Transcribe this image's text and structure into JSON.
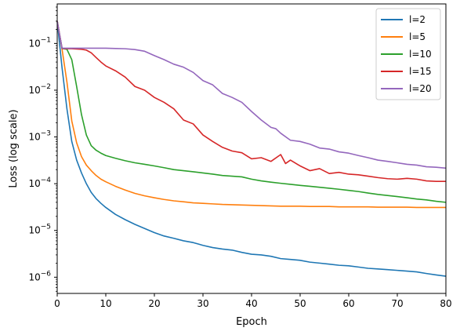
{
  "chart_data": {
    "type": "line",
    "xlabel": "Epoch",
    "ylabel": "Loss (log scale)",
    "x_range": [
      0,
      80
    ],
    "y_range": [
      4.5e-07,
      0.7
    ],
    "y_scale": "log",
    "x_ticks": [
      0,
      10,
      20,
      30,
      40,
      50,
      60,
      70,
      80
    ],
    "y_ticks": [
      {
        "value": 1e-06,
        "base": "10",
        "exp": "−6"
      },
      {
        "value": 1e-05,
        "base": "10",
        "exp": "−5"
      },
      {
        "value": 0.0001,
        "base": "10",
        "exp": "−4"
      },
      {
        "value": 0.001,
        "base": "10",
        "exp": "−3"
      },
      {
        "value": 0.01,
        "base": "10",
        "exp": "−2"
      },
      {
        "value": 0.1,
        "base": "10",
        "exp": "−1"
      }
    ],
    "grid": false,
    "legend_position": "top-right",
    "series": [
      {
        "name": "l=2",
        "color": "#1f77b4",
        "points": [
          [
            0,
            0.3
          ],
          [
            1,
            0.03
          ],
          [
            2,
            0.004
          ],
          [
            3,
            0.0008
          ],
          [
            4,
            0.00032
          ],
          [
            5,
            0.00017
          ],
          [
            6,
            0.0001
          ],
          [
            7,
            6.5e-05
          ],
          [
            8,
            4.8e-05
          ],
          [
            9,
            3.8e-05
          ],
          [
            10,
            3.1e-05
          ],
          [
            12,
            2.2e-05
          ],
          [
            14,
            1.7e-05
          ],
          [
            16,
            1.35e-05
          ],
          [
            18,
            1.1e-05
          ],
          [
            20,
            9e-06
          ],
          [
            22,
            7.6e-06
          ],
          [
            24,
            6.8e-06
          ],
          [
            26,
            6e-06
          ],
          [
            28,
            5.5e-06
          ],
          [
            30,
            4.8e-06
          ],
          [
            32,
            4.3e-06
          ],
          [
            34,
            4e-06
          ],
          [
            36,
            3.8e-06
          ],
          [
            38,
            3.4e-06
          ],
          [
            40,
            3.1e-06
          ],
          [
            42,
            3e-06
          ],
          [
            44,
            2.8e-06
          ],
          [
            46,
            2.5e-06
          ],
          [
            48,
            2.4e-06
          ],
          [
            50,
            2.3e-06
          ],
          [
            52,
            2.1e-06
          ],
          [
            54,
            2e-06
          ],
          [
            56,
            1.9e-06
          ],
          [
            58,
            1.8e-06
          ],
          [
            60,
            1.75e-06
          ],
          [
            62,
            1.65e-06
          ],
          [
            64,
            1.55e-06
          ],
          [
            66,
            1.5e-06
          ],
          [
            68,
            1.45e-06
          ],
          [
            70,
            1.4e-06
          ],
          [
            72,
            1.35e-06
          ],
          [
            74,
            1.3e-06
          ],
          [
            76,
            1.2e-06
          ],
          [
            78,
            1.12e-06
          ],
          [
            80,
            1.05e-06
          ]
        ]
      },
      {
        "name": "l=5",
        "color": "#ff7f0e",
        "points": [
          [
            0,
            0.3
          ],
          [
            1,
            0.075
          ],
          [
            2,
            0.015
          ],
          [
            3,
            0.0022
          ],
          [
            4,
            0.00075
          ],
          [
            5,
            0.00038
          ],
          [
            6,
            0.00025
          ],
          [
            7,
            0.00019
          ],
          [
            8,
            0.00015
          ],
          [
            9,
            0.000125
          ],
          [
            10,
            0.00011
          ],
          [
            12,
            8.8e-05
          ],
          [
            14,
            7.3e-05
          ],
          [
            16,
            6.2e-05
          ],
          [
            18,
            5.5e-05
          ],
          [
            20,
            5e-05
          ],
          [
            22,
            4.6e-05
          ],
          [
            24,
            4.3e-05
          ],
          [
            26,
            4.1e-05
          ],
          [
            28,
            3.9e-05
          ],
          [
            30,
            3.8e-05
          ],
          [
            32,
            3.7e-05
          ],
          [
            34,
            3.6e-05
          ],
          [
            36,
            3.55e-05
          ],
          [
            38,
            3.5e-05
          ],
          [
            40,
            3.45e-05
          ],
          [
            42,
            3.4e-05
          ],
          [
            44,
            3.35e-05
          ],
          [
            46,
            3.3e-05
          ],
          [
            48,
            3.3e-05
          ],
          [
            50,
            3.3e-05
          ],
          [
            52,
            3.25e-05
          ],
          [
            54,
            3.25e-05
          ],
          [
            56,
            3.25e-05
          ],
          [
            58,
            3.2e-05
          ],
          [
            60,
            3.2e-05
          ],
          [
            62,
            3.2e-05
          ],
          [
            64,
            3.2e-05
          ],
          [
            66,
            3.15e-05
          ],
          [
            68,
            3.15e-05
          ],
          [
            70,
            3.15e-05
          ],
          [
            72,
            3.15e-05
          ],
          [
            74,
            3.1e-05
          ],
          [
            76,
            3.1e-05
          ],
          [
            78,
            3.1e-05
          ],
          [
            80,
            3.1e-05
          ]
        ]
      },
      {
        "name": "l=10",
        "color": "#2ca02c",
        "points": [
          [
            0,
            0.3
          ],
          [
            1,
            0.078
          ],
          [
            2,
            0.075
          ],
          [
            3,
            0.045
          ],
          [
            4,
            0.012
          ],
          [
            5,
            0.003
          ],
          [
            6,
            0.0011
          ],
          [
            7,
            0.00065
          ],
          [
            8,
            0.00052
          ],
          [
            9,
            0.00045
          ],
          [
            10,
            0.0004
          ],
          [
            12,
            0.00035
          ],
          [
            14,
            0.00031
          ],
          [
            16,
            0.00028
          ],
          [
            18,
            0.00026
          ],
          [
            20,
            0.00024
          ],
          [
            22,
            0.00022
          ],
          [
            24,
            0.0002
          ],
          [
            26,
            0.00019
          ],
          [
            28,
            0.00018
          ],
          [
            30,
            0.00017
          ],
          [
            32,
            0.00016
          ],
          [
            34,
            0.00015
          ],
          [
            36,
            0.000145
          ],
          [
            38,
            0.00014
          ],
          [
            40,
            0.000125
          ],
          [
            42,
            0.000115
          ],
          [
            44,
            0.000108
          ],
          [
            46,
            0.000102
          ],
          [
            48,
            9.7e-05
          ],
          [
            50,
            9.2e-05
          ],
          [
            52,
            8.8e-05
          ],
          [
            54,
            8.4e-05
          ],
          [
            56,
            8e-05
          ],
          [
            58,
            7.6e-05
          ],
          [
            60,
            7.2e-05
          ],
          [
            62,
            6.8e-05
          ],
          [
            64,
            6.3e-05
          ],
          [
            66,
            5.9e-05
          ],
          [
            68,
            5.6e-05
          ],
          [
            70,
            5.3e-05
          ],
          [
            72,
            5e-05
          ],
          [
            74,
            4.7e-05
          ],
          [
            76,
            4.5e-05
          ],
          [
            78,
            4.2e-05
          ],
          [
            80,
            4e-05
          ]
        ]
      },
      {
        "name": "l=15",
        "color": "#d62728",
        "points": [
          [
            0,
            0.3
          ],
          [
            1,
            0.078
          ],
          [
            2,
            0.077
          ],
          [
            3,
            0.077
          ],
          [
            4,
            0.076
          ],
          [
            5,
            0.075
          ],
          [
            6,
            0.072
          ],
          [
            7,
            0.063
          ],
          [
            8,
            0.05
          ],
          [
            9,
            0.04
          ],
          [
            10,
            0.033
          ],
          [
            12,
            0.026
          ],
          [
            14,
            0.019
          ],
          [
            16,
            0.012
          ],
          [
            18,
            0.01
          ],
          [
            20,
            0.007
          ],
          [
            22,
            0.0055
          ],
          [
            24,
            0.004
          ],
          [
            26,
            0.0023
          ],
          [
            28,
            0.0019
          ],
          [
            30,
            0.0011
          ],
          [
            32,
            0.0008
          ],
          [
            34,
            0.0006
          ],
          [
            36,
            0.0005
          ],
          [
            38,
            0.00046
          ],
          [
            40,
            0.00034
          ],
          [
            42,
            0.00036
          ],
          [
            44,
            0.0003
          ],
          [
            46,
            0.00042
          ],
          [
            47,
            0.00027
          ],
          [
            48,
            0.00032
          ],
          [
            50,
            0.00024
          ],
          [
            52,
            0.00019
          ],
          [
            54,
            0.00021
          ],
          [
            56,
            0.000165
          ],
          [
            58,
            0.000175
          ],
          [
            60,
            0.00016
          ],
          [
            62,
            0.000155
          ],
          [
            64,
            0.000145
          ],
          [
            66,
            0.000135
          ],
          [
            68,
            0.000128
          ],
          [
            70,
            0.000125
          ],
          [
            72,
            0.00013
          ],
          [
            74,
            0.000125
          ],
          [
            76,
            0.000115
          ],
          [
            78,
            0.000112
          ],
          [
            80,
            0.000112
          ]
        ]
      },
      {
        "name": "l=20",
        "color": "#9467bd",
        "points": [
          [
            0,
            0.3
          ],
          [
            1,
            0.079
          ],
          [
            2,
            0.079
          ],
          [
            4,
            0.079
          ],
          [
            6,
            0.079
          ],
          [
            8,
            0.079
          ],
          [
            10,
            0.079
          ],
          [
            12,
            0.078
          ],
          [
            14,
            0.077
          ],
          [
            16,
            0.074
          ],
          [
            18,
            0.068
          ],
          [
            20,
            0.055
          ],
          [
            22,
            0.045
          ],
          [
            24,
            0.036
          ],
          [
            26,
            0.031
          ],
          [
            28,
            0.024
          ],
          [
            30,
            0.016
          ],
          [
            32,
            0.013
          ],
          [
            34,
            0.0085
          ],
          [
            36,
            0.007
          ],
          [
            38,
            0.0055
          ],
          [
            40,
            0.0035
          ],
          [
            42,
            0.0023
          ],
          [
            44,
            0.0016
          ],
          [
            45,
            0.0015
          ],
          [
            46,
            0.0012
          ],
          [
            48,
            0.00085
          ],
          [
            50,
            0.0008
          ],
          [
            52,
            0.0007
          ],
          [
            54,
            0.00058
          ],
          [
            56,
            0.00055
          ],
          [
            58,
            0.00048
          ],
          [
            60,
            0.00045
          ],
          [
            62,
            0.0004
          ],
          [
            64,
            0.00036
          ],
          [
            66,
            0.00032
          ],
          [
            68,
            0.0003
          ],
          [
            70,
            0.00028
          ],
          [
            72,
            0.00026
          ],
          [
            74,
            0.00025
          ],
          [
            76,
            0.00023
          ],
          [
            78,
            0.000225
          ],
          [
            80,
            0.000215
          ]
        ]
      }
    ]
  }
}
